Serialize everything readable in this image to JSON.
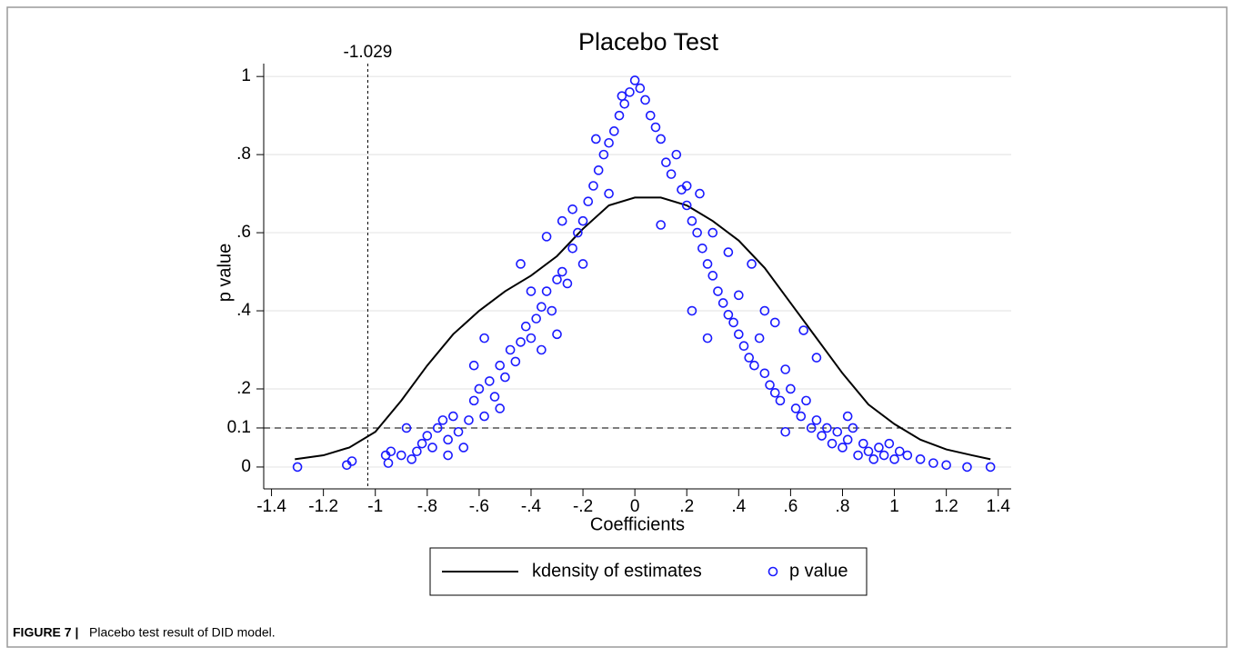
{
  "chart_data": {
    "type": "scatter_line",
    "title": "Placebo Test",
    "xlabel": "Coefficients",
    "ylabel": "p value",
    "caption_label": "FIGURE 7 |",
    "caption_text": "Placebo test result of DID model.",
    "xlim": [
      -1.43,
      1.45
    ],
    "ylim": [
      -0.056,
      1.033
    ],
    "xticks": [
      -1.4,
      -1.2,
      -1,
      {
        "value": -0.8,
        "label": "-.8"
      },
      {
        "value": -0.6,
        "label": "-.6"
      },
      {
        "value": -0.4,
        "label": "-.4"
      },
      {
        "value": -0.2,
        "label": "-.2"
      },
      0,
      {
        "value": 0.2,
        "label": ".2"
      },
      {
        "value": 0.4,
        "label": ".4"
      },
      {
        "value": 0.6,
        "label": ".6"
      },
      {
        "value": 0.8,
        "label": ".8"
      },
      1,
      1.2,
      1.4
    ],
    "yticks": [
      0,
      0.1,
      {
        "value": 0.2,
        "label": ".2"
      },
      {
        "value": 0.4,
        "label": ".4"
      },
      {
        "value": 0.6,
        "label": ".6"
      },
      {
        "value": 0.8,
        "label": ".8"
      },
      1
    ],
    "grid": true,
    "vline": -1.029,
    "hline": 0.1,
    "legend": "bottom",
    "series": [
      {
        "name": "kdensity of estimates",
        "kind": "line",
        "color": "#000000",
        "x": [
          -1.31,
          -1.2,
          -1.1,
          -1.0,
          -0.9,
          -0.8,
          -0.7,
          -0.6,
          -0.5,
          -0.4,
          -0.3,
          -0.2,
          -0.1,
          0,
          0.1,
          0.2,
          0.3,
          0.4,
          0.5,
          0.6,
          0.7,
          0.8,
          0.9,
          1.0,
          1.1,
          1.2,
          1.3,
          1.37
        ],
        "values": [
          0.02,
          0.03,
          0.05,
          0.09,
          0.17,
          0.26,
          0.34,
          0.4,
          0.45,
          0.49,
          0.54,
          0.61,
          0.67,
          0.69,
          0.69,
          0.67,
          0.63,
          0.58,
          0.51,
          0.42,
          0.33,
          0.24,
          0.16,
          0.11,
          0.07,
          0.045,
          0.03,
          0.02
        ]
      },
      {
        "name": "p value",
        "kind": "scatter",
        "color": "#1a1aff",
        "x": [
          -1.3,
          -1.11,
          -1.09,
          -0.96,
          -0.95,
          -0.94,
          -0.9,
          -0.88,
          -0.86,
          -0.84,
          -0.82,
          -0.8,
          -0.78,
          -0.76,
          -0.74,
          -0.72,
          -0.7,
          -0.68,
          -0.66,
          -0.64,
          -0.62,
          -0.6,
          -0.58,
          -0.56,
          -0.54,
          -0.52,
          -0.5,
          -0.48,
          -0.46,
          -0.44,
          -0.42,
          -0.4,
          -0.38,
          -0.36,
          -0.34,
          -0.32,
          -0.3,
          -0.28,
          -0.26,
          -0.24,
          -0.22,
          -0.2,
          -0.18,
          -0.16,
          -0.14,
          -0.12,
          -0.1,
          -0.08,
          -0.06,
          -0.04,
          -0.02,
          0,
          -0.62,
          -0.44,
          -0.58,
          -0.3,
          -0.36,
          -0.2,
          -0.24,
          -0.15,
          -0.28,
          -0.52,
          -0.72,
          -0.34,
          -0.1,
          -0.05,
          -0.4,
          0.02,
          0.04,
          0.06,
          0.08,
          0.1,
          0.12,
          0.14,
          0.16,
          0.18,
          0.2,
          0.22,
          0.24,
          0.26,
          0.28,
          0.3,
          0.32,
          0.34,
          0.36,
          0.38,
          0.4,
          0.42,
          0.44,
          0.46,
          0.48,
          0.5,
          0.52,
          0.54,
          0.56,
          0.58,
          0.6,
          0.62,
          0.64,
          0.66,
          0.68,
          0.7,
          0.72,
          0.74,
          0.76,
          0.78,
          0.8,
          0.82,
          0.84,
          0.86,
          0.88,
          0.9,
          0.92,
          0.94,
          0.96,
          0.98,
          1.0,
          1.02,
          1.05,
          1.1,
          1.15,
          1.2,
          1.28,
          1.37,
          0.25,
          0.3,
          0.22,
          0.36,
          0.5,
          0.7,
          0.65,
          0.4,
          0.1,
          0.28,
          0.54,
          0.82,
          0.2,
          0.45,
          0.58
        ],
        "values": [
          0,
          0.005,
          0.015,
          0.03,
          0.01,
          0.04,
          0.03,
          0.1,
          0.02,
          0.04,
          0.06,
          0.08,
          0.05,
          0.1,
          0.12,
          0.07,
          0.13,
          0.09,
          0.05,
          0.12,
          0.17,
          0.2,
          0.13,
          0.22,
          0.18,
          0.26,
          0.23,
          0.3,
          0.27,
          0.32,
          0.36,
          0.33,
          0.38,
          0.41,
          0.45,
          0.4,
          0.48,
          0.5,
          0.47,
          0.56,
          0.6,
          0.63,
          0.68,
          0.72,
          0.76,
          0.8,
          0.83,
          0.86,
          0.9,
          0.93,
          0.96,
          0.99,
          0.26,
          0.52,
          0.33,
          0.34,
          0.3,
          0.52,
          0.66,
          0.84,
          0.63,
          0.15,
          0.03,
          0.59,
          0.7,
          0.95,
          0.45,
          0.97,
          0.94,
          0.9,
          0.87,
          0.84,
          0.78,
          0.75,
          0.8,
          0.71,
          0.67,
          0.63,
          0.6,
          0.56,
          0.52,
          0.49,
          0.45,
          0.42,
          0.39,
          0.37,
          0.34,
          0.31,
          0.28,
          0.26,
          0.33,
          0.24,
          0.21,
          0.19,
          0.17,
          0.25,
          0.2,
          0.15,
          0.13,
          0.17,
          0.1,
          0.12,
          0.08,
          0.1,
          0.06,
          0.09,
          0.05,
          0.07,
          0.1,
          0.03,
          0.06,
          0.04,
          0.02,
          0.05,
          0.03,
          0.06,
          0.02,
          0.04,
          0.03,
          0.02,
          0.01,
          0.005,
          0,
          0,
          0.7,
          0.6,
          0.4,
          0.55,
          0.4,
          0.28,
          0.35,
          0.44,
          0.62,
          0.33,
          0.37,
          0.13,
          0.72,
          0.52,
          0.09
        ]
      }
    ]
  }
}
